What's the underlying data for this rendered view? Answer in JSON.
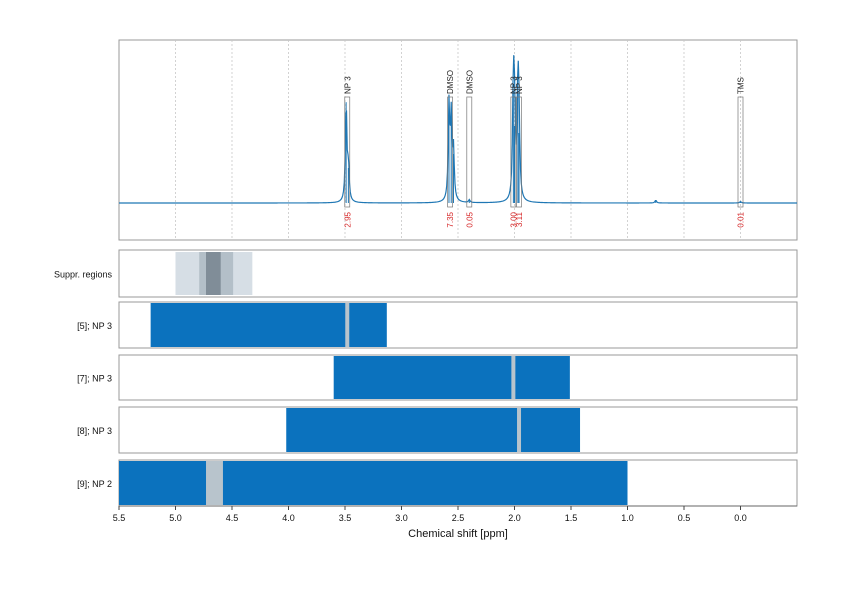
{
  "chart_data": {
    "type": "nmr-spectrum",
    "xlabel": "Chemical shift [ppm]",
    "xlim": [
      5.5,
      -0.5
    ],
    "x_ticks": [
      "5.5",
      "5.0",
      "4.5",
      "4.0",
      "3.5",
      "3.0",
      "2.5",
      "2.0",
      "1.5",
      "1.0",
      "0.5",
      "0.0"
    ],
    "colors": {
      "spectrum": "#1f77b4",
      "bar": "#0b72be",
      "label_red": "#d62728",
      "suppr_light": "#d6dee5",
      "suppr_mid": "#b3bfc8",
      "suppr_dark": "#808d98",
      "gap": "#b8c4cc"
    },
    "spectrum_peaks": [
      {
        "ppm": 3.49,
        "height": 0.72
      },
      {
        "ppm": 3.47,
        "height": 0.25
      },
      {
        "ppm": 2.58,
        "height": 0.68
      },
      {
        "ppm": 2.56,
        "height": 0.58
      },
      {
        "ppm": 2.54,
        "height": 0.35
      },
      {
        "ppm": 2.4,
        "height": 0.02
      },
      {
        "ppm": 2.01,
        "height": 0.8
      },
      {
        "ppm": 2.0,
        "height": 0.55
      },
      {
        "ppm": 1.97,
        "height": 0.78
      },
      {
        "ppm": 1.96,
        "height": 0.5
      },
      {
        "ppm": 0.75,
        "height": 0.02
      },
      {
        "ppm": 0.0,
        "height": 0.01
      }
    ],
    "peak_annotations": [
      {
        "name": "NP 3",
        "ppm": 3.48,
        "value": "2.95"
      },
      {
        "name": "DMSO",
        "ppm": 2.57,
        "value": "7.35"
      },
      {
        "name": "DMSO",
        "ppm": 2.4,
        "value": "0.05"
      },
      {
        "name": "NP 3",
        "ppm": 2.01,
        "value": "3.00"
      },
      {
        "name": "NP 3",
        "ppm": 1.96,
        "value": "3.11"
      },
      {
        "name": "TMS",
        "ppm": 0.0,
        "value": "0.01"
      }
    ],
    "suppression": {
      "label": "Suppr. regions",
      "regions": [
        {
          "from": 5.0,
          "to": 4.32,
          "level": "light"
        },
        {
          "from": 4.79,
          "to": 4.49,
          "level": "mid"
        },
        {
          "from": 4.73,
          "to": 4.6,
          "level": "dark"
        }
      ]
    },
    "bar_tracks": [
      {
        "label": "[5]; NP 3",
        "from": 5.22,
        "to": 3.13,
        "gaps": [
          3.48
        ]
      },
      {
        "label": "[7]; NP 3",
        "from": 3.6,
        "to": 1.51,
        "gaps": [
          2.01
        ]
      },
      {
        "label": "[8]; NP 3",
        "from": 4.02,
        "to": 1.42,
        "gaps": [
          1.96
        ]
      },
      {
        "label": "[9]; NP 2",
        "from": 5.5,
        "to": 1.0,
        "gaps": [
          4.66
        ]
      }
    ]
  }
}
